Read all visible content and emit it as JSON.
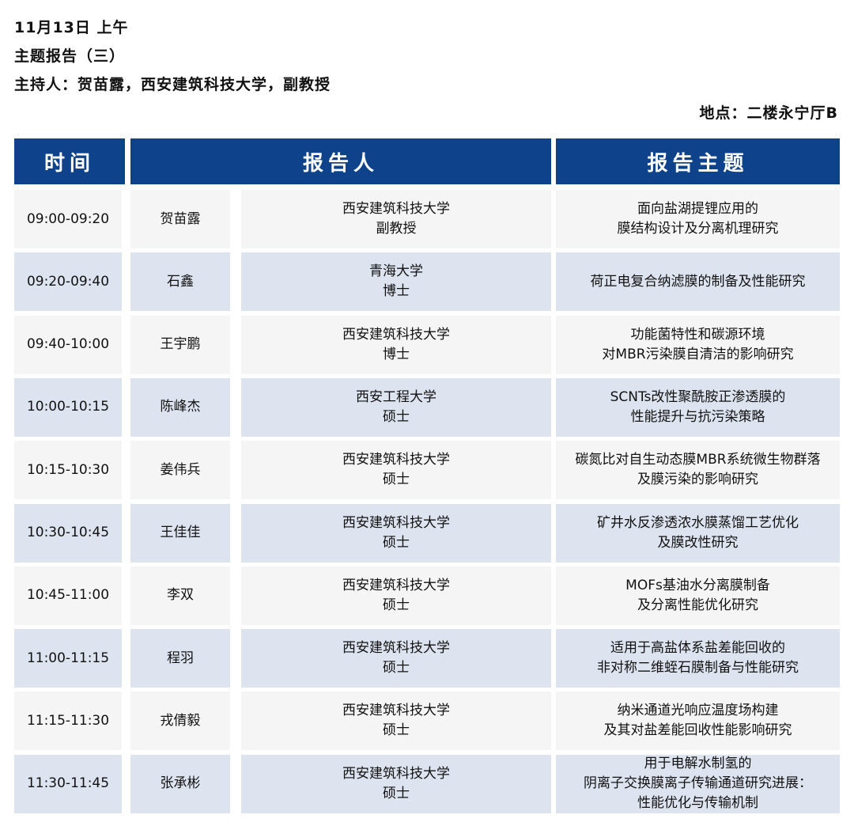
{
  "header": {
    "date": "11月13日 上午",
    "session": "主题报告（三）",
    "host": "主持人：贺苗露，西安建筑科技大学，副教授",
    "location": "地点：二楼永宁厅B"
  },
  "columns": {
    "time": "时间",
    "speaker": "报告人",
    "topic": "报告主题"
  },
  "colors": {
    "header_blue": "#0e438b",
    "row_light": "#f5f5f5",
    "row_blue": "#dde4ef"
  },
  "rows": [
    {
      "time": "09:00-09:20",
      "name": "贺苗露",
      "affiliation": "西安建筑科技大学\n副教授",
      "topic": "面向盐湖提锂应用的\n膜结构设计及分离机理研究"
    },
    {
      "time": "09:20-09:40",
      "name": "石鑫",
      "affiliation": "青海大学\n博士",
      "topic": "荷正电复合纳滤膜的制备及性能研究"
    },
    {
      "time": "09:40-10:00",
      "name": "王宇鹏",
      "affiliation": "西安建筑科技大学\n博士",
      "topic": "功能菌特性和碳源环境\n对MBR污染膜自清洁的影响研究"
    },
    {
      "time": "10:00-10:15",
      "name": "陈峰杰",
      "affiliation": "西安工程大学\n硕士",
      "topic": "SCNTs改性聚酰胺正渗透膜的\n性能提升与抗污染策略"
    },
    {
      "time": "10:15-10:30",
      "name": "姜伟兵",
      "affiliation": "西安建筑科技大学\n硕士",
      "topic": "碳氮比对自生动态膜MBR系统微生物群落\n及膜污染的影响研究"
    },
    {
      "time": "10:30-10:45",
      "name": "王佳佳",
      "affiliation": "西安建筑科技大学\n硕士",
      "topic": "矿井水反渗透浓水膜蒸馏工艺优化\n及膜改性研究"
    },
    {
      "time": "10:45-11:00",
      "name": "李双",
      "affiliation": "西安建筑科技大学\n硕士",
      "topic": "MOFs基油水分离膜制备\n及分离性能优化研究"
    },
    {
      "time": "11:00-11:15",
      "name": "程羽",
      "affiliation": "西安建筑科技大学\n硕士",
      "topic": "适用于高盐体系盐差能回收的\n非对称二维蛭石膜制备与性能研究"
    },
    {
      "time": "11:15-11:30",
      "name": "戎倩毅",
      "affiliation": "西安建筑科技大学\n硕士",
      "topic": "纳米通道光响应温度场构建\n及其对盐差能回收性能影响研究"
    },
    {
      "time": "11:30-11:45",
      "name": "张承彬",
      "affiliation": "西安建筑科技大学\n硕士",
      "topic": "用于电解水制氢的\n阴离子交换膜离子传输通道研究进展：\n性能优化与传输机制"
    }
  ]
}
